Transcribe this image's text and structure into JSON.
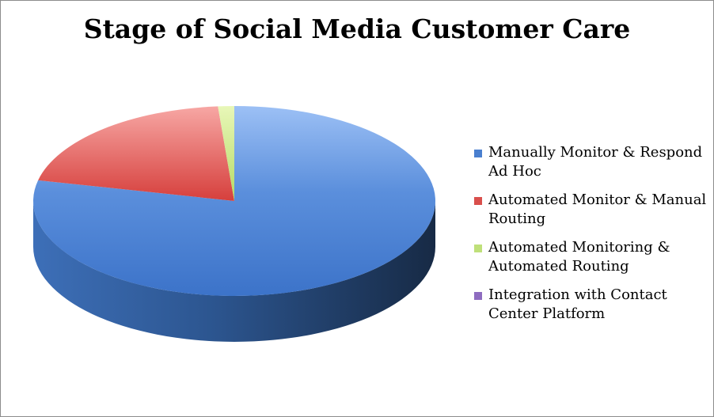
{
  "chart_data": {
    "type": "pie",
    "title": "Stage of Social Media Customer Care",
    "slices": [
      {
        "label": "Manually Monitor & Respond Ad Hoc",
        "value": 78.5,
        "color": "#4a7fcf"
      },
      {
        "label": "Automated Monitor & Manual Routing",
        "value": 20.2,
        "color": "#d94f4c"
      },
      {
        "label": "Automated Monitoring & Automated Routing",
        "value": 1.3,
        "color": "#bfe07a"
      },
      {
        "label": "Integration with Contact Center Platform",
        "value": 0,
        "color": "#8e6cc0"
      }
    ],
    "legend_position": "right",
    "style": "3d"
  }
}
